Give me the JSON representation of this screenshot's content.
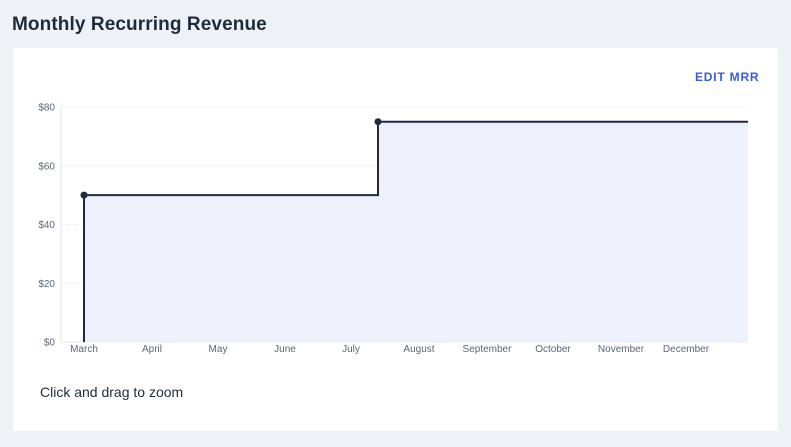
{
  "header": {
    "title": "Monthly Recurring Revenue"
  },
  "card": {
    "edit_label": "EDIT MRR",
    "hint": "Click and drag to zoom"
  },
  "colors": {
    "background": "#eef1f6",
    "card": "#ffffff",
    "accent": "#3b5bdb",
    "line": "#1e2b3c",
    "area_fill": "#eef0fc"
  },
  "chart_data": {
    "type": "area",
    "step": true,
    "categories": [
      "March",
      "April",
      "May",
      "June",
      "July",
      "August",
      "September",
      "October",
      "November",
      "December"
    ],
    "y_ticks": [
      "$0",
      "$20",
      "$40",
      "$60",
      "$80"
    ],
    "ylim": [
      0,
      80
    ],
    "xlabel": "",
    "ylabel": "",
    "grid": true,
    "points": [
      {
        "x": "March",
        "y": 50
      },
      {
        "x": "July",
        "y": 75
      }
    ],
    "series": [
      {
        "values": [
          50,
          50,
          50,
          50,
          75,
          75,
          75,
          75,
          75,
          75
        ]
      }
    ]
  }
}
